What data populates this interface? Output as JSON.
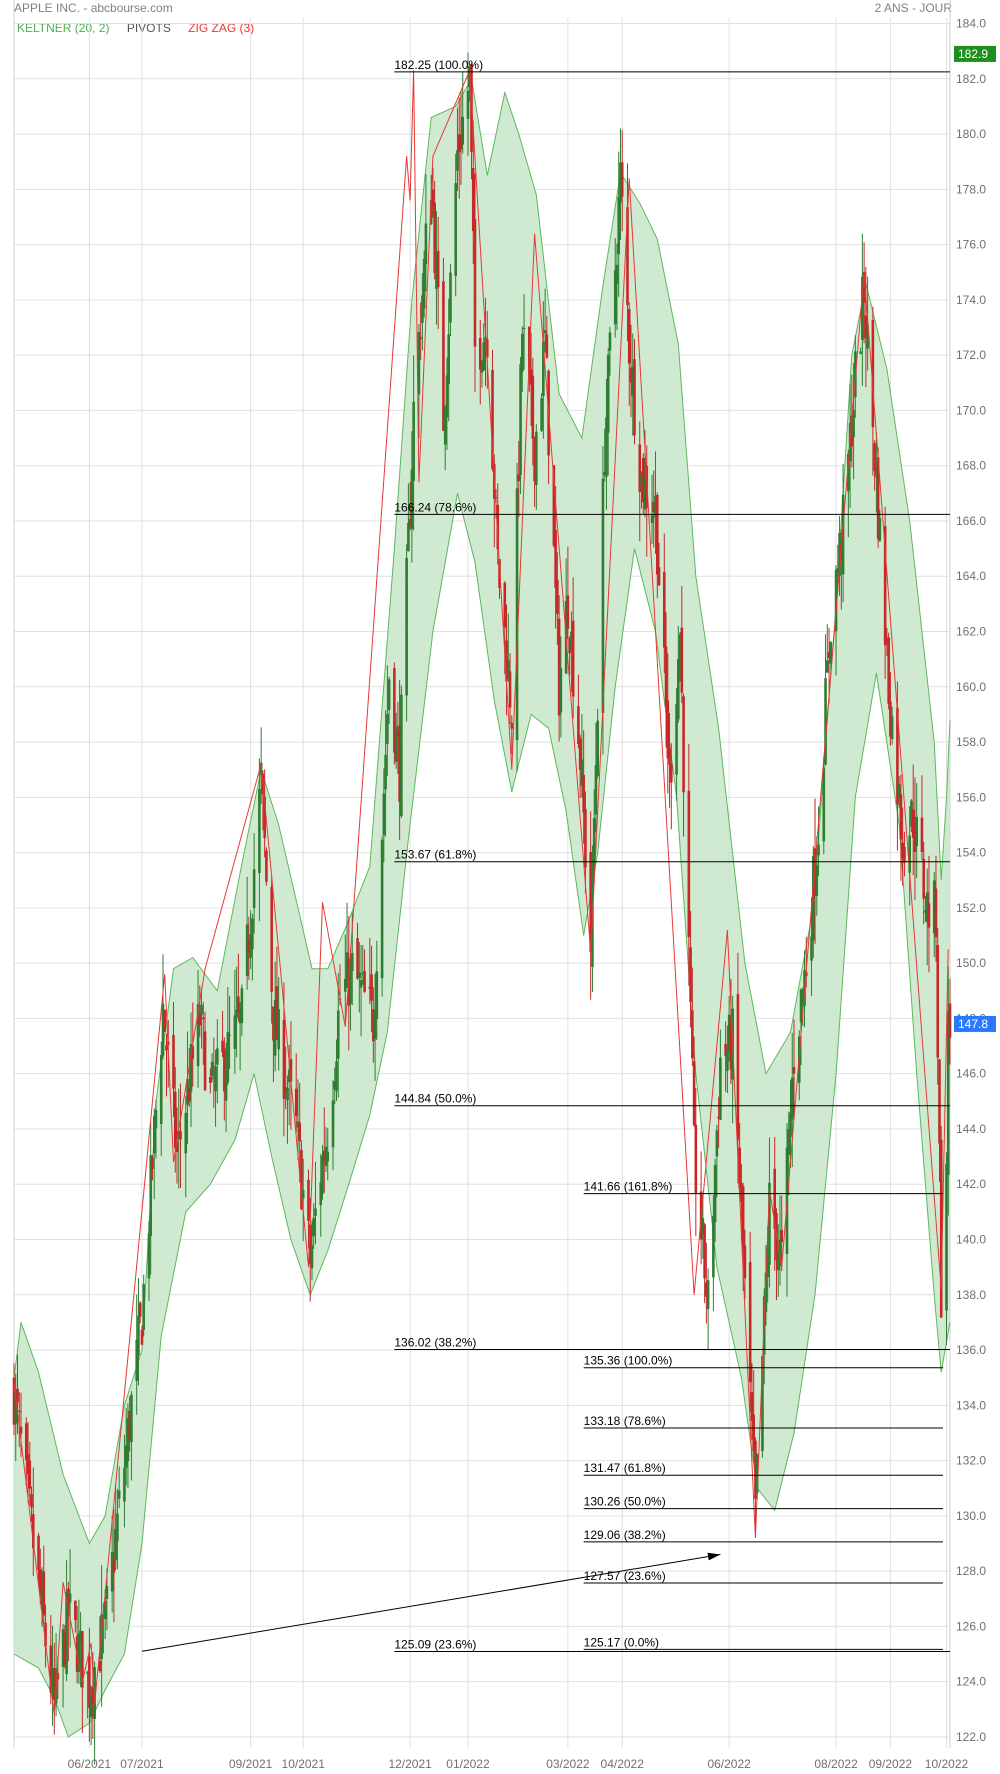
{
  "header": {
    "title": "APPLE INC. - abcbourse.com",
    "period": "2 ANS - JOUR"
  },
  "indicators": [
    {
      "label": "KELTNER (20, 2)",
      "color": "#4caf50"
    },
    {
      "label": "PIVOTS",
      "color": "#555555"
    },
    {
      "label": "ZIG ZAG (3)",
      "color": "#e53935"
    }
  ],
  "colors": {
    "up_candle": "#2e7d32",
    "down_candle": "#c62828",
    "band_fill": "#c8e6c9",
    "band_stroke": "#5cb85c",
    "zigzag": "#e53935",
    "grid": "#e0e0e0",
    "last_price_bg": "#2979ff",
    "high_price_bg": "#1e8e1e"
  },
  "chart_data": {
    "type": "candlestick",
    "title": "APPLE INC. - abcbourse.com",
    "ylim": [
      121.6,
      184.2
    ],
    "y_ticks": [
      "184.0",
      "182.0",
      "180.0",
      "178.0",
      "176.0",
      "174.0",
      "172.0",
      "170.0",
      "168.0",
      "166.0",
      "164.0",
      "162.0",
      "160.0",
      "158.0",
      "156.0",
      "154.0",
      "152.0",
      "150.0",
      "148.0",
      "146.0",
      "144.0",
      "142.0",
      "140.0",
      "138.0",
      "136.0",
      "134.0",
      "132.0",
      "130.0",
      "128.0",
      "126.0",
      "124.0",
      "122.0"
    ],
    "x_labels": [
      {
        "label": "06/2021",
        "date": "2021-06-01"
      },
      {
        "label": "07/2021",
        "date": "2021-07-01"
      },
      {
        "label": "09/2021",
        "date": "2021-09-01"
      },
      {
        "label": "10/2021",
        "date": "2021-10-01"
      },
      {
        "label": "12/2021",
        "date": "2021-12-01"
      },
      {
        "label": "01/2022",
        "date": "2022-01-03"
      },
      {
        "label": "03/2022",
        "date": "2022-03-01"
      },
      {
        "label": "04/2022",
        "date": "2022-04-01"
      },
      {
        "label": "06/2022",
        "date": "2022-06-01"
      },
      {
        "label": "08/2022",
        "date": "2022-08-01"
      },
      {
        "label": "09/2022",
        "date": "2022-09-01"
      },
      {
        "label": "10/2022",
        "date": "2022-10-03"
      }
    ],
    "x_range": [
      "2021-04-19",
      "2022-10-05"
    ],
    "price_path": [
      {
        "date": "2021-04-19",
        "close": 134.5
      },
      {
        "date": "2021-05-12",
        "close": 123.0
      },
      {
        "date": "2021-05-20",
        "close": 126.5
      },
      {
        "date": "2021-06-01",
        "close": 123.8
      },
      {
        "date": "2021-06-10",
        "close": 126.0
      },
      {
        "date": "2021-07-01",
        "close": 137.2
      },
      {
        "date": "2021-07-13",
        "close": 148.4
      },
      {
        "date": "2021-07-21",
        "close": 143.0
      },
      {
        "date": "2021-08-03",
        "close": 148.0
      },
      {
        "date": "2021-08-09",
        "close": 145.2
      },
      {
        "date": "2021-08-27",
        "close": 148.0
      },
      {
        "date": "2021-09-07",
        "close": 156.6
      },
      {
        "date": "2021-09-14",
        "close": 148.1
      },
      {
        "date": "2021-09-27",
        "close": 144.0
      },
      {
        "date": "2021-10-05",
        "close": 139.2
      },
      {
        "date": "2021-10-11",
        "close": 142.5
      },
      {
        "date": "2021-10-15",
        "close": 144.0
      },
      {
        "date": "2021-10-22",
        "close": 148.7
      },
      {
        "date": "2021-10-29",
        "close": 149.7
      },
      {
        "date": "2021-11-10",
        "close": 147.9
      },
      {
        "date": "2021-11-19",
        "close": 160.5
      },
      {
        "date": "2021-11-25",
        "close": 157.0
      },
      {
        "date": "2021-12-03",
        "close": 170.0
      },
      {
        "date": "2021-12-13",
        "close": 178.5
      },
      {
        "date": "2021-12-20",
        "close": 169.8
      },
      {
        "date": "2021-12-28",
        "close": 179.3
      },
      {
        "date": "2022-01-04",
        "close": 182.0
      },
      {
        "date": "2022-01-07",
        "close": 172.2
      },
      {
        "date": "2022-01-14",
        "close": 173.0
      },
      {
        "date": "2022-01-20",
        "close": 164.5
      },
      {
        "date": "2022-01-28",
        "close": 159.2
      },
      {
        "date": "2022-02-03",
        "close": 172.9
      },
      {
        "date": "2022-02-10",
        "close": 168.6
      },
      {
        "date": "2022-02-16",
        "close": 172.5
      },
      {
        "date": "2022-02-24",
        "close": 160.0
      },
      {
        "date": "2022-03-01",
        "close": 163.2
      },
      {
        "date": "2022-03-08",
        "close": 157.5
      },
      {
        "date": "2022-03-14",
        "close": 150.6
      },
      {
        "date": "2022-03-22",
        "close": 168.8
      },
      {
        "date": "2022-03-31",
        "close": 178.4
      },
      {
        "date": "2022-04-05",
        "close": 172.4
      },
      {
        "date": "2022-04-12",
        "close": 167.5
      },
      {
        "date": "2022-04-20",
        "close": 166.5
      },
      {
        "date": "2022-04-28",
        "close": 156.6
      },
      {
        "date": "2022-05-04",
        "close": 162.0
      },
      {
        "date": "2022-05-12",
        "close": 143.0
      },
      {
        "date": "2022-05-20",
        "close": 137.6
      },
      {
        "date": "2022-05-27",
        "close": 146.5
      },
      {
        "date": "2022-06-03",
        "close": 147.2
      },
      {
        "date": "2022-06-10",
        "close": 138.2
      },
      {
        "date": "2022-06-16",
        "close": 130.0
      },
      {
        "date": "2022-06-24",
        "close": 141.3
      },
      {
        "date": "2022-07-01",
        "close": 139.2
      },
      {
        "date": "2022-07-08",
        "close": 146.7
      },
      {
        "date": "2022-07-15",
        "close": 150.0
      },
      {
        "date": "2022-07-22",
        "close": 155.0
      },
      {
        "date": "2022-07-29",
        "close": 162.5
      },
      {
        "date": "2022-08-05",
        "close": 165.8
      },
      {
        "date": "2022-08-12",
        "close": 171.2
      },
      {
        "date": "2022-08-17",
        "close": 174.3
      },
      {
        "date": "2022-08-24",
        "close": 167.5
      },
      {
        "date": "2022-08-31",
        "close": 160.0
      },
      {
        "date": "2022-09-08",
        "close": 154.5
      },
      {
        "date": "2022-09-14",
        "close": 155.3
      },
      {
        "date": "2022-09-22",
        "close": 152.0
      },
      {
        "date": "2022-09-27",
        "close": 151.8
      },
      {
        "date": "2022-09-30",
        "close": 138.2
      },
      {
        "date": "2022-10-03",
        "close": 142.0
      },
      {
        "date": "2022-10-04",
        "close": 148.4
      },
      {
        "date": "2022-10-05",
        "close": 147.8
      }
    ],
    "keltner_upper": [
      {
        "date": "2021-04-19",
        "value": 135.0
      },
      {
        "date": "2021-04-23",
        "value": 137.0
      },
      {
        "date": "2021-05-03",
        "value": 135.2
      },
      {
        "date": "2021-05-17",
        "value": 131.5
      },
      {
        "date": "2021-06-01",
        "value": 129.0
      },
      {
        "date": "2021-06-10",
        "value": 130.0
      },
      {
        "date": "2021-06-21",
        "value": 134.0
      },
      {
        "date": "2021-07-01",
        "value": 136.0
      },
      {
        "date": "2021-07-09",
        "value": 145.0
      },
      {
        "date": "2021-07-19",
        "value": 149.8
      },
      {
        "date": "2021-07-30",
        "value": 150.2
      },
      {
        "date": "2021-08-13",
        "value": 149.0
      },
      {
        "date": "2021-08-27",
        "value": 153.6
      },
      {
        "date": "2021-09-07",
        "value": 157.0
      },
      {
        "date": "2021-09-17",
        "value": 155.0
      },
      {
        "date": "2021-09-28",
        "value": 152.0
      },
      {
        "date": "2021-10-06",
        "value": 149.8
      },
      {
        "date": "2021-10-15",
        "value": 149.8
      },
      {
        "date": "2021-10-26",
        "value": 151.4
      },
      {
        "date": "2021-11-08",
        "value": 153.5
      },
      {
        "date": "2021-11-22",
        "value": 165.0
      },
      {
        "date": "2021-12-02",
        "value": 174.0
      },
      {
        "date": "2021-12-13",
        "value": 180.6
      },
      {
        "date": "2021-12-27",
        "value": 181.0
      },
      {
        "date": "2022-01-05",
        "value": 182.0
      },
      {
        "date": "2022-01-14",
        "value": 178.5
      },
      {
        "date": "2022-01-24",
        "value": 181.5
      },
      {
        "date": "2022-02-01",
        "value": 180.0
      },
      {
        "date": "2022-02-11",
        "value": 177.8
      },
      {
        "date": "2022-02-24",
        "value": 170.6
      },
      {
        "date": "2022-03-09",
        "value": 169.0
      },
      {
        "date": "2022-03-21",
        "value": 174.5
      },
      {
        "date": "2022-03-31",
        "value": 178.6
      },
      {
        "date": "2022-04-11",
        "value": 177.5
      },
      {
        "date": "2022-04-21",
        "value": 176.2
      },
      {
        "date": "2022-05-03",
        "value": 172.4
      },
      {
        "date": "2022-05-13",
        "value": 164.0
      },
      {
        "date": "2022-05-26",
        "value": 158.5
      },
      {
        "date": "2022-06-10",
        "value": 150.0
      },
      {
        "date": "2022-06-22",
        "value": 146.0
      },
      {
        "date": "2022-07-06",
        "value": 147.5
      },
      {
        "date": "2022-07-19",
        "value": 152.0
      },
      {
        "date": "2022-08-01",
        "value": 163.0
      },
      {
        "date": "2022-08-10",
        "value": 172.0
      },
      {
        "date": "2022-08-18",
        "value": 174.6
      },
      {
        "date": "2022-08-30",
        "value": 171.5
      },
      {
        "date": "2022-09-12",
        "value": 166.0
      },
      {
        "date": "2022-09-26",
        "value": 158.0
      },
      {
        "date": "2022-09-30",
        "value": 153.0
      },
      {
        "date": "2022-10-03",
        "value": 156.0
      },
      {
        "date": "2022-10-05",
        "value": 158.8
      }
    ],
    "keltner_lower": [
      {
        "date": "2021-04-19",
        "value": 125.0
      },
      {
        "date": "2021-05-03",
        "value": 124.5
      },
      {
        "date": "2021-05-12",
        "value": 123.4
      },
      {
        "date": "2021-05-20",
        "value": 122.0
      },
      {
        "date": "2021-06-01",
        "value": 122.5
      },
      {
        "date": "2021-06-10",
        "value": 123.7
      },
      {
        "date": "2021-06-21",
        "value": 125.0
      },
      {
        "date": "2021-07-01",
        "value": 129.0
      },
      {
        "date": "2021-07-12",
        "value": 136.5
      },
      {
        "date": "2021-07-26",
        "value": 141.0
      },
      {
        "date": "2021-08-09",
        "value": 142.0
      },
      {
        "date": "2021-08-23",
        "value": 143.6
      },
      {
        "date": "2021-09-03",
        "value": 146.0
      },
      {
        "date": "2021-09-13",
        "value": 143.0
      },
      {
        "date": "2021-09-24",
        "value": 140.0
      },
      {
        "date": "2021-10-05",
        "value": 138.0
      },
      {
        "date": "2021-10-15",
        "value": 139.6
      },
      {
        "date": "2021-10-27",
        "value": 142.0
      },
      {
        "date": "2021-11-08",
        "value": 144.5
      },
      {
        "date": "2021-11-18",
        "value": 147.5
      },
      {
        "date": "2021-11-30",
        "value": 154.5
      },
      {
        "date": "2021-12-14",
        "value": 162.0
      },
      {
        "date": "2021-12-28",
        "value": 167.0
      },
      {
        "date": "2022-01-07",
        "value": 164.5
      },
      {
        "date": "2022-01-18",
        "value": 159.5
      },
      {
        "date": "2022-01-28",
        "value": 156.2
      },
      {
        "date": "2022-02-08",
        "value": 159.0
      },
      {
        "date": "2022-02-18",
        "value": 158.5
      },
      {
        "date": "2022-02-28",
        "value": 155.5
      },
      {
        "date": "2022-03-10",
        "value": 151.0
      },
      {
        "date": "2022-03-18",
        "value": 154.0
      },
      {
        "date": "2022-03-28",
        "value": 160.0
      },
      {
        "date": "2022-04-08",
        "value": 165.0
      },
      {
        "date": "2022-04-20",
        "value": 162.0
      },
      {
        "date": "2022-05-02",
        "value": 156.0
      },
      {
        "date": "2022-05-13",
        "value": 146.0
      },
      {
        "date": "2022-05-25",
        "value": 139.0
      },
      {
        "date": "2022-06-08",
        "value": 135.0
      },
      {
        "date": "2022-06-17",
        "value": 131.0
      },
      {
        "date": "2022-06-27",
        "value": 130.2
      },
      {
        "date": "2022-07-08",
        "value": 133.0
      },
      {
        "date": "2022-07-20",
        "value": 138.0
      },
      {
        "date": "2022-08-01",
        "value": 146.0
      },
      {
        "date": "2022-08-12",
        "value": 156.0
      },
      {
        "date": "2022-08-24",
        "value": 160.5
      },
      {
        "date": "2022-09-06",
        "value": 155.0
      },
      {
        "date": "2022-09-16",
        "value": 146.0
      },
      {
        "date": "2022-09-26",
        "value": 138.0
      },
      {
        "date": "2022-09-30",
        "value": 135.2
      },
      {
        "date": "2022-10-05",
        "value": 137.0
      }
    ],
    "zigzag": [
      {
        "date": "2021-04-19",
        "value": 134.8
      },
      {
        "date": "2021-05-12",
        "value": 122.8
      },
      {
        "date": "2021-05-17",
        "value": 127.6
      },
      {
        "date": "2021-05-28",
        "value": 124.0
      },
      {
        "date": "2021-06-02",
        "value": 125.4
      },
      {
        "date": "2021-06-04",
        "value": 123.2
      },
      {
        "date": "2021-07-14",
        "value": 149.6
      },
      {
        "date": "2021-07-19",
        "value": 142.8
      },
      {
        "date": "2021-08-06",
        "value": 149.8
      },
      {
        "date": "2021-09-07",
        "value": 157.2
      },
      {
        "date": "2021-10-04",
        "value": 139.0
      },
      {
        "date": "2021-10-12",
        "value": 152.2
      },
      {
        "date": "2021-10-25",
        "value": 147.7
      },
      {
        "date": "2021-11-29",
        "value": 179.2
      },
      {
        "date": "2021-12-01",
        "value": 177.6
      },
      {
        "date": "2021-12-03",
        "value": 182.3
      },
      {
        "date": "2021-12-06",
        "value": 167.4
      },
      {
        "date": "2021-12-14",
        "value": 179.2
      },
      {
        "date": "2022-01-04",
        "value": 182.3
      },
      {
        "date": "2022-01-28",
        "value": 157.0
      },
      {
        "date": "2022-02-10",
        "value": 176.4
      },
      {
        "date": "2022-03-14",
        "value": 150.4
      },
      {
        "date": "2022-04-05",
        "value": 178.4
      },
      {
        "date": "2022-05-12",
        "value": 138.0
      },
      {
        "date": "2022-05-31",
        "value": 151.2
      },
      {
        "date": "2022-06-16",
        "value": 129.2
      },
      {
        "date": "2022-06-24",
        "value": 141.8
      },
      {
        "date": "2022-07-01",
        "value": 139.0
      },
      {
        "date": "2022-08-17",
        "value": 175.0
      },
      {
        "date": "2022-09-30",
        "value": 138.2
      },
      {
        "date": "2022-10-04",
        "value": 150.5
      }
    ],
    "fib_levels_1": [
      {
        "label": "182.25  (100.0%)",
        "value": 182.25
      },
      {
        "label": "166.24  (78.6%)",
        "value": 166.24
      },
      {
        "label": "153.67  (61.8%)",
        "value": 153.67
      },
      {
        "label": "144.84  (50.0%)",
        "value": 144.84
      },
      {
        "label": "136.02  (38.2%)",
        "value": 136.02
      },
      {
        "label": "125.09  (23.6%)",
        "value": 125.09
      }
    ],
    "fib_levels_2": [
      {
        "label": "141.66  (161.8%)",
        "value": 141.66
      },
      {
        "label": "135.36  (100.0%)",
        "value": 135.36
      },
      {
        "label": "133.18  (78.6%)",
        "value": 133.18
      },
      {
        "label": "131.47  (61.8%)",
        "value": 131.47
      },
      {
        "label": "130.26  (50.0%)",
        "value": 130.26
      },
      {
        "label": "129.06  (38.2%)",
        "value": 129.06
      },
      {
        "label": "127.57  (23.6%)",
        "value": 127.57
      },
      {
        "label": "125.17  (0.0%)",
        "value": 125.17
      }
    ],
    "fib1_start": "2021-11-22",
    "fib2_start": "2022-03-10",
    "fib2_end": "2022-10-01",
    "arrow": {
      "from": {
        "date": "2021-07-01",
        "value": 125.1
      },
      "to": {
        "date": "2022-05-27",
        "value": 128.6
      }
    },
    "high_tag": {
      "label": "182.9",
      "value": 182.9
    },
    "last_tag": {
      "label": "147.8",
      "value": 147.8
    }
  }
}
